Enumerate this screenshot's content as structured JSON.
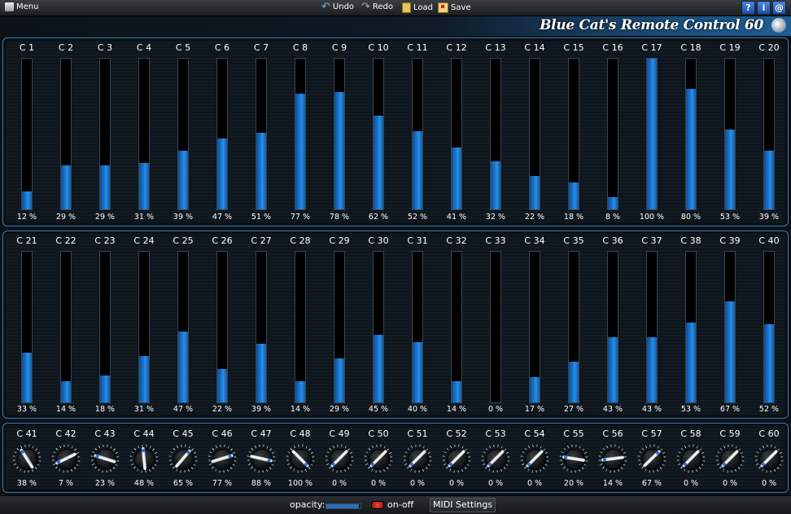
{
  "toolbar": {
    "menu_label": "Menu",
    "undo_label": "Undo",
    "redo_label": "Redo",
    "load_label": "Load",
    "save_label": "Save",
    "help_label": "?",
    "info_label": "i",
    "web_label": "@"
  },
  "header": {
    "title": "Blue Cat's Remote Control 60"
  },
  "accent_color": "#1a78d2",
  "row1": [
    {
      "label": "C 1",
      "value": 12,
      "display": "12 %"
    },
    {
      "label": "C 2",
      "value": 29,
      "display": "29 %"
    },
    {
      "label": "C 3",
      "value": 29,
      "display": "29 %"
    },
    {
      "label": "C 4",
      "value": 31,
      "display": "31 %"
    },
    {
      "label": "C 5",
      "value": 39,
      "display": "39 %"
    },
    {
      "label": "C 6",
      "value": 47,
      "display": "47 %"
    },
    {
      "label": "C 7",
      "value": 51,
      "display": "51 %"
    },
    {
      "label": "C 8",
      "value": 77,
      "display": "77 %"
    },
    {
      "label": "C 9",
      "value": 78,
      "display": "78 %"
    },
    {
      "label": "C 10",
      "value": 62,
      "display": "62 %"
    },
    {
      "label": "C 11",
      "value": 52,
      "display": "52 %"
    },
    {
      "label": "C 12",
      "value": 41,
      "display": "41 %"
    },
    {
      "label": "C 13",
      "value": 32,
      "display": "32 %"
    },
    {
      "label": "C 14",
      "value": 22,
      "display": "22 %"
    },
    {
      "label": "C 15",
      "value": 18,
      "display": "18 %"
    },
    {
      "label": "C 16",
      "value": 8,
      "display": "8 %"
    },
    {
      "label": "C 17",
      "value": 100,
      "display": "100 %"
    },
    {
      "label": "C 18",
      "value": 80,
      "display": "80 %"
    },
    {
      "label": "C 19",
      "value": 53,
      "display": "53 %"
    },
    {
      "label": "C 20",
      "value": 39,
      "display": "39 %"
    }
  ],
  "row2": [
    {
      "label": "C 21",
      "value": 33,
      "display": "33 %"
    },
    {
      "label": "C 22",
      "value": 14,
      "display": "14 %"
    },
    {
      "label": "C 23",
      "value": 18,
      "display": "18 %"
    },
    {
      "label": "C 24",
      "value": 31,
      "display": "31 %"
    },
    {
      "label": "C 25",
      "value": 47,
      "display": "47 %"
    },
    {
      "label": "C 26",
      "value": 22,
      "display": "22 %"
    },
    {
      "label": "C 27",
      "value": 39,
      "display": "39 %"
    },
    {
      "label": "C 28",
      "value": 14,
      "display": "14 %"
    },
    {
      "label": "C 29",
      "value": 29,
      "display": "29 %"
    },
    {
      "label": "C 30",
      "value": 45,
      "display": "45 %"
    },
    {
      "label": "C 31",
      "value": 40,
      "display": "40 %"
    },
    {
      "label": "C 32",
      "value": 14,
      "display": "14 %"
    },
    {
      "label": "C 33",
      "value": 0,
      "display": "0 %"
    },
    {
      "label": "C 34",
      "value": 17,
      "display": "17 %"
    },
    {
      "label": "C 35",
      "value": 27,
      "display": "27 %"
    },
    {
      "label": "C 36",
      "value": 43,
      "display": "43 %"
    },
    {
      "label": "C 37",
      "value": 43,
      "display": "43 %"
    },
    {
      "label": "C 38",
      "value": 53,
      "display": "53 %"
    },
    {
      "label": "C 39",
      "value": 67,
      "display": "67 %"
    },
    {
      "label": "C 40",
      "value": 52,
      "display": "52 %"
    }
  ],
  "row3": [
    {
      "label": "C 41",
      "value": 38,
      "display": "38 %"
    },
    {
      "label": "C 42",
      "value": 7,
      "display": "7 %"
    },
    {
      "label": "C 43",
      "value": 23,
      "display": "23 %"
    },
    {
      "label": "C 44",
      "value": 48,
      "display": "48 %"
    },
    {
      "label": "C 45",
      "value": 65,
      "display": "65 %"
    },
    {
      "label": "C 46",
      "value": 77,
      "display": "77 %"
    },
    {
      "label": "C 47",
      "value": 88,
      "display": "88 %"
    },
    {
      "label": "C 48",
      "value": 100,
      "display": "100 %"
    },
    {
      "label": "C 49",
      "value": 0,
      "display": "0 %"
    },
    {
      "label": "C 50",
      "value": 0,
      "display": "0 %"
    },
    {
      "label": "C 51",
      "value": 0,
      "display": "0 %"
    },
    {
      "label": "C 52",
      "value": 0,
      "display": "0 %"
    },
    {
      "label": "C 53",
      "value": 0,
      "display": "0 %"
    },
    {
      "label": "C 54",
      "value": 0,
      "display": "0 %"
    },
    {
      "label": "C 55",
      "value": 20,
      "display": "20 %"
    },
    {
      "label": "C 56",
      "value": 14,
      "display": "14 %"
    },
    {
      "label": "C 57",
      "value": 67,
      "display": "67 %"
    },
    {
      "label": "C 58",
      "value": 0,
      "display": "0 %"
    },
    {
      "label": "C 59",
      "value": 0,
      "display": "0 %"
    },
    {
      "label": "C 60",
      "value": 0,
      "display": "0 %"
    }
  ],
  "footer": {
    "opacity_label": "opacity:",
    "opacity_level": 0.95,
    "onoff_label": "on-off",
    "midi_label": "MIDI Settings"
  }
}
